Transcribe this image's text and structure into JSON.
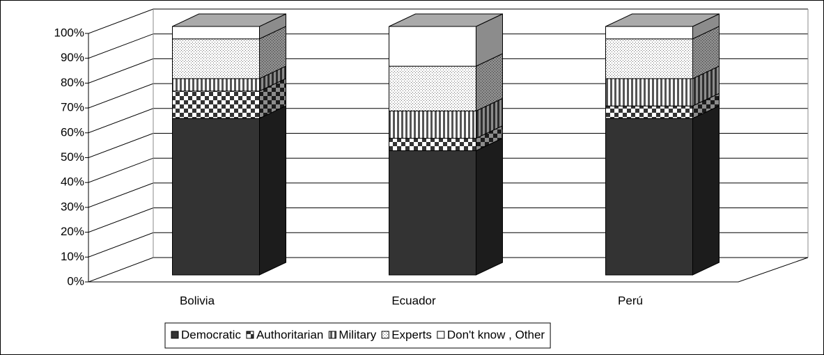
{
  "chart_data": {
    "type": "bar3d_stacked",
    "categories": [
      "Bolivia",
      "Ecuador",
      "Perú"
    ],
    "series": [
      {
        "name": "Democratic",
        "color": "#333333",
        "pattern": "solid",
        "values": [
          63,
          50,
          63
        ]
      },
      {
        "name": "Authoritarian",
        "color": "#333333",
        "pattern": "checker",
        "values": [
          11,
          5,
          5
        ]
      },
      {
        "name": "Military",
        "color": "#333333",
        "pattern": "vstripes",
        "values": [
          5,
          11,
          11
        ]
      },
      {
        "name": "Experts",
        "color": "#666666",
        "pattern": "dots",
        "values": [
          16,
          18,
          16
        ]
      },
      {
        "name": "Don't know , Other",
        "color": "#ffffff",
        "pattern": "solid",
        "values": [
          5,
          16,
          5
        ]
      }
    ],
    "ylim": [
      0,
      100
    ],
    "yticks": [
      {
        "value": 0,
        "label": "0%"
      },
      {
        "value": 10,
        "label": "10%"
      },
      {
        "value": 20,
        "label": "20%"
      },
      {
        "value": 30,
        "label": "30%"
      },
      {
        "value": 40,
        "label": "40%"
      },
      {
        "value": 50,
        "label": "50%"
      },
      {
        "value": 60,
        "label": "60%"
      },
      {
        "value": 70,
        "label": "70%"
      },
      {
        "value": 80,
        "label": "80%"
      },
      {
        "value": 90,
        "label": "90%"
      },
      {
        "value": 100,
        "label": "100%"
      }
    ],
    "grid": true,
    "legend": "bottom"
  }
}
